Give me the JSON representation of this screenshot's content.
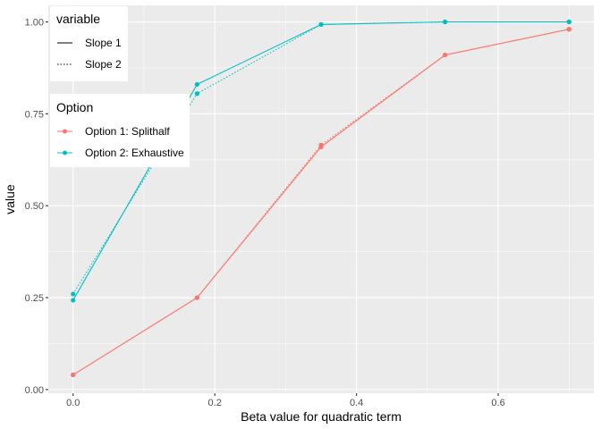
{
  "chart_data": {
    "type": "line",
    "xlabel": "Beta value for quadratic term",
    "ylabel": "value",
    "xlim": [
      -0.035,
      0.735
    ],
    "ylim": [
      -0.01,
      1.045
    ],
    "x_ticks": [
      0.0,
      0.2,
      0.4,
      0.6
    ],
    "x_tick_labels": [
      "0.0",
      "0.2",
      "0.4",
      "0.6"
    ],
    "y_ticks": [
      0.0,
      0.25,
      0.5,
      0.75,
      1.0
    ],
    "y_tick_labels": [
      "0.00",
      "0.25",
      "0.50",
      "0.75",
      "1.00"
    ],
    "grid": true,
    "background": "#EBEBEB",
    "x": [
      0,
      0.175,
      0.35,
      0.525,
      0.7
    ],
    "series": [
      {
        "option": "Option 1: Splithalf",
        "variable": "Slope 1",
        "color": "#F8766D",
        "linetype": "solid",
        "values": [
          0.04,
          0.25,
          0.66,
          0.91,
          0.98
        ]
      },
      {
        "option": "Option 1: Splithalf",
        "variable": "Slope 2",
        "color": "#F8766D",
        "linetype": "dotted",
        "values": [
          0.04,
          0.25,
          0.665,
          0.91,
          0.98
        ]
      },
      {
        "option": "Option 2: Exhaustive",
        "variable": "Slope 1",
        "color": "#00BFC4",
        "linetype": "solid",
        "values": [
          0.243,
          0.83,
          0.993,
          1.0,
          1.0
        ]
      },
      {
        "option": "Option 2: Exhaustive",
        "variable": "Slope 2",
        "color": "#00BFC4",
        "linetype": "dotted",
        "values": [
          0.26,
          0.805,
          0.993,
          1.0,
          1.0
        ]
      }
    ],
    "legends": [
      {
        "title": "variable",
        "placement": "top-left",
        "entries": [
          {
            "label": "Slope 1",
            "linetype": "solid"
          },
          {
            "label": "Slope 2",
            "linetype": "dotted"
          }
        ]
      },
      {
        "title": "Option",
        "placement": "top-left",
        "entries": [
          {
            "label": "Option 1: Splithalf",
            "color": "#F8766D"
          },
          {
            "label": "Option 2: Exhaustive",
            "color": "#00BFC4"
          }
        ]
      }
    ]
  }
}
